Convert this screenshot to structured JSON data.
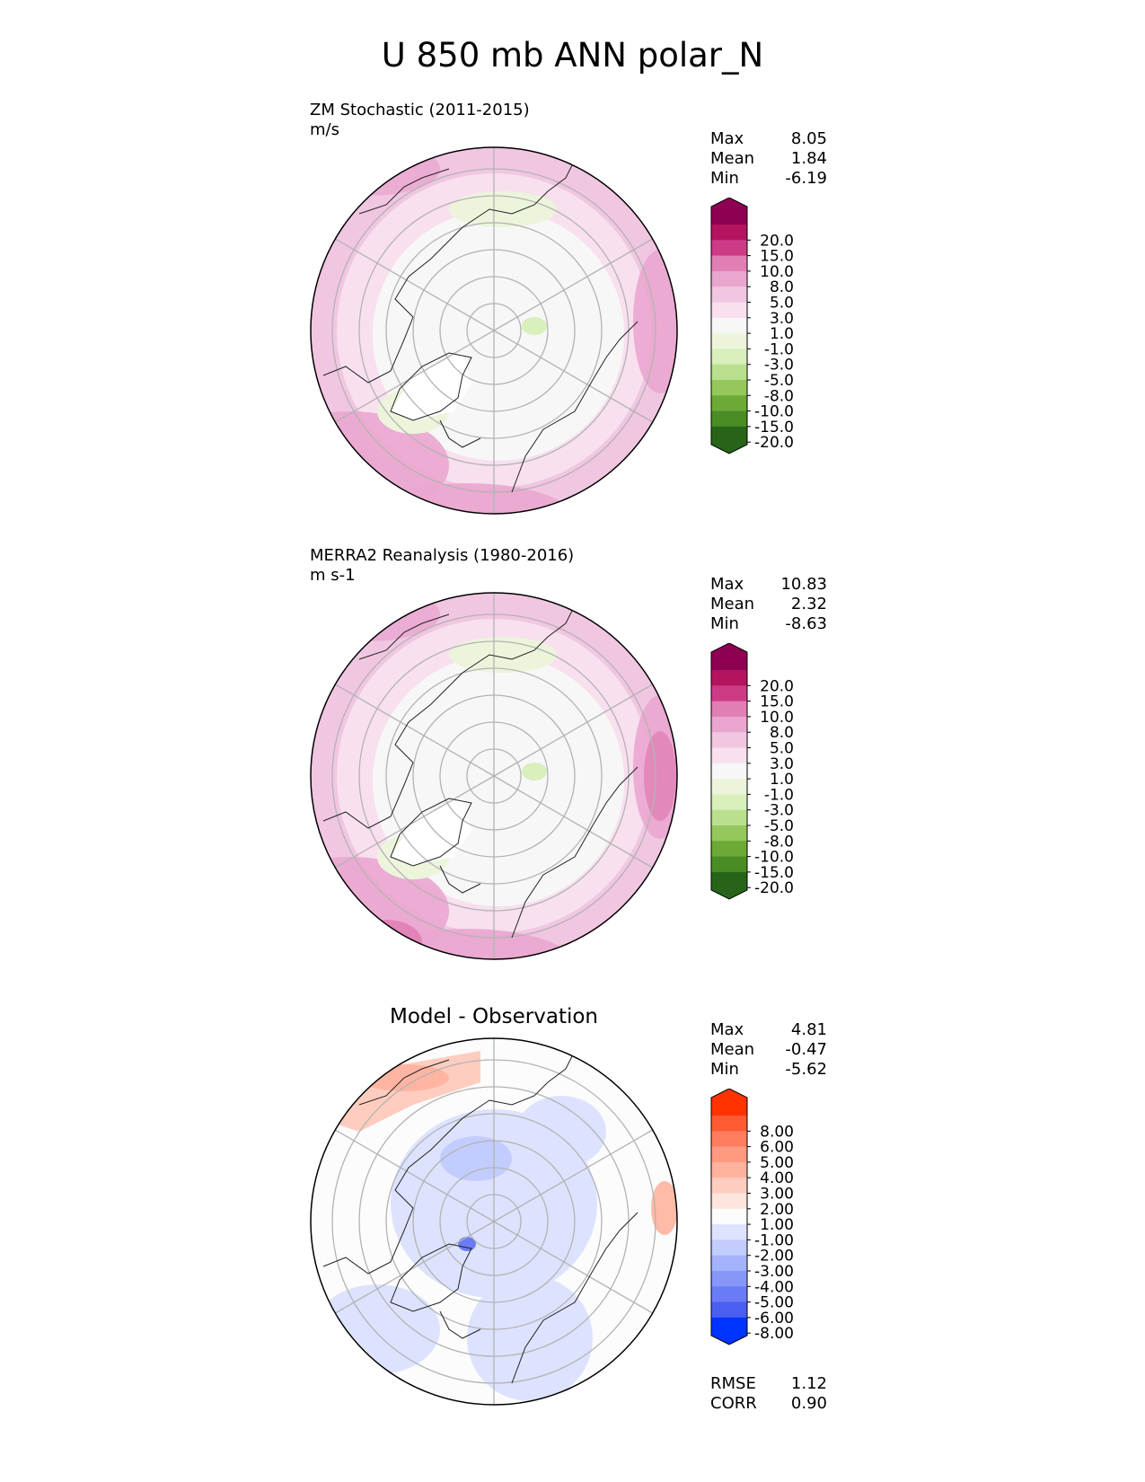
{
  "figure": {
    "title": "U 850 mb ANN polar_N"
  },
  "panels": [
    {
      "id": "test",
      "title_line1": "ZM Stochastic (2011-2015)",
      "title_line2": "m/s",
      "stats": {
        "max_label": "Max",
        "max": "8.05",
        "mean_label": "Mean",
        "mean": "1.84",
        "min_label": "Min",
        "min": "-6.19"
      },
      "colorbar": "main"
    },
    {
      "id": "reference",
      "title_line1": "MERRA2 Reanalysis (1980-2016)",
      "title_line2": "m s-1",
      "stats": {
        "max_label": "Max",
        "max": "10.83",
        "mean_label": "Mean",
        "mean": "2.32",
        "min_label": "Min",
        "min": "-8.63"
      },
      "colorbar": "main"
    },
    {
      "id": "diff",
      "title_center": "Model - Observation",
      "stats": {
        "max_label": "Max",
        "max": "4.81",
        "mean_label": "Mean",
        "mean": "-0.47",
        "min_label": "Min",
        "min": "-5.62"
      },
      "metrics": {
        "rmse_label": "RMSE",
        "rmse": "1.12",
        "corr_label": "CORR",
        "corr": "0.90"
      },
      "colorbar": "diff"
    }
  ],
  "chart_data": [
    {
      "type": "heatmap",
      "title": "ZM Stochastic (2011-2015)",
      "units": "m/s",
      "projection": "north polar stereographic",
      "stats": {
        "max": 8.05,
        "mean": 1.84,
        "min": -6.19
      },
      "colorbar_levels": [
        "20.0",
        "15.0",
        "10.0",
        "8.0",
        "5.0",
        "3.0",
        "1.0",
        "-1.0",
        "-3.0",
        "-5.0",
        "-8.0",
        "-10.0",
        "-15.0",
        "-20.0"
      ]
    },
    {
      "type": "heatmap",
      "title": "MERRA2 Reanalysis (1980-2016)",
      "units": "m s-1",
      "projection": "north polar stereographic",
      "stats": {
        "max": 10.83,
        "mean": 2.32,
        "min": -8.63
      },
      "colorbar_levels": [
        "20.0",
        "15.0",
        "10.0",
        "8.0",
        "5.0",
        "3.0",
        "1.0",
        "-1.0",
        "-3.0",
        "-5.0",
        "-8.0",
        "-10.0",
        "-15.0",
        "-20.0"
      ]
    },
    {
      "type": "heatmap",
      "title": "Model - Observation",
      "projection": "north polar stereographic",
      "stats": {
        "max": 4.81,
        "mean": -0.47,
        "min": -5.62,
        "rmse": 1.12,
        "corr": 0.9
      },
      "colorbar_levels": [
        "8.00",
        "6.00",
        "5.00",
        "4.00",
        "3.00",
        "2.00",
        "1.00",
        "-1.00",
        "-2.00",
        "-3.00",
        "-4.00",
        "-5.00",
        "-6.00",
        "-8.00"
      ]
    }
  ],
  "colorbars": {
    "main": {
      "labels": [
        "20.0",
        "15.0",
        "10.0",
        "8.0",
        "5.0",
        "3.0",
        "1.0",
        "-1.0",
        "-3.0",
        "-5.0",
        "-8.0",
        "-10.0",
        "-15.0",
        "-20.0"
      ],
      "colors": [
        "#8e0152",
        "#b4135f",
        "#cd3b87",
        "#e17fb4",
        "#eaa6cf",
        "#f1c6e1",
        "#f8e0ee",
        "#f7f7f7",
        "#ecf5dc",
        "#d9efbc",
        "#b9e08e",
        "#95c85c",
        "#6da936",
        "#4a8d25",
        "#276419"
      ]
    },
    "diff": {
      "labels": [
        "8.00",
        "6.00",
        "5.00",
        "4.00",
        "3.00",
        "2.00",
        "1.00",
        "-1.00",
        "-2.00",
        "-3.00",
        "-4.00",
        "-5.00",
        "-6.00",
        "-8.00"
      ],
      "colors": [
        "#ff3300",
        "#ff5a33",
        "#ff7d5e",
        "#ff9a80",
        "#ffb39f",
        "#ffcdc0",
        "#ffe5de",
        "#fcfcfc",
        "#dde3ff",
        "#c3ccfe",
        "#a5b3fc",
        "#8797f8",
        "#6a7cf5",
        "#4b5ef2",
        "#0033ff"
      ]
    }
  }
}
